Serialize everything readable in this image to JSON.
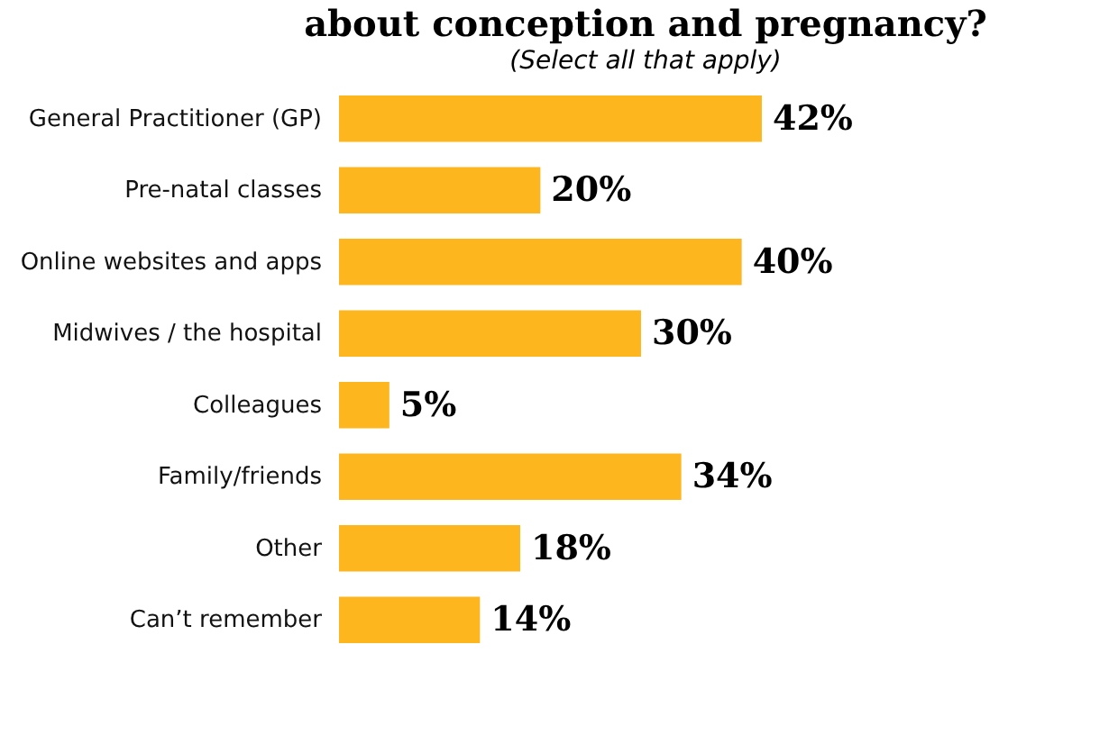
{
  "chart_data": {
    "type": "bar",
    "orientation": "horizontal",
    "title": "about conception and pregnancy?",
    "subtitle": "(Select all that apply)",
    "categories": [
      "General Practitioner (GP)",
      "Pre-natal classes",
      "Online websites and apps",
      "Midwives / the hospital",
      "Colleagues",
      "Family/friends",
      "Other",
      "Can’t remember"
    ],
    "values": [
      42,
      20,
      40,
      30,
      5,
      34,
      18,
      14
    ],
    "value_labels": [
      "42%",
      "20%",
      "40%",
      "30%",
      "5%",
      "34%",
      "18%",
      "14%"
    ],
    "color": "#fdb61e",
    "grid": false
  }
}
